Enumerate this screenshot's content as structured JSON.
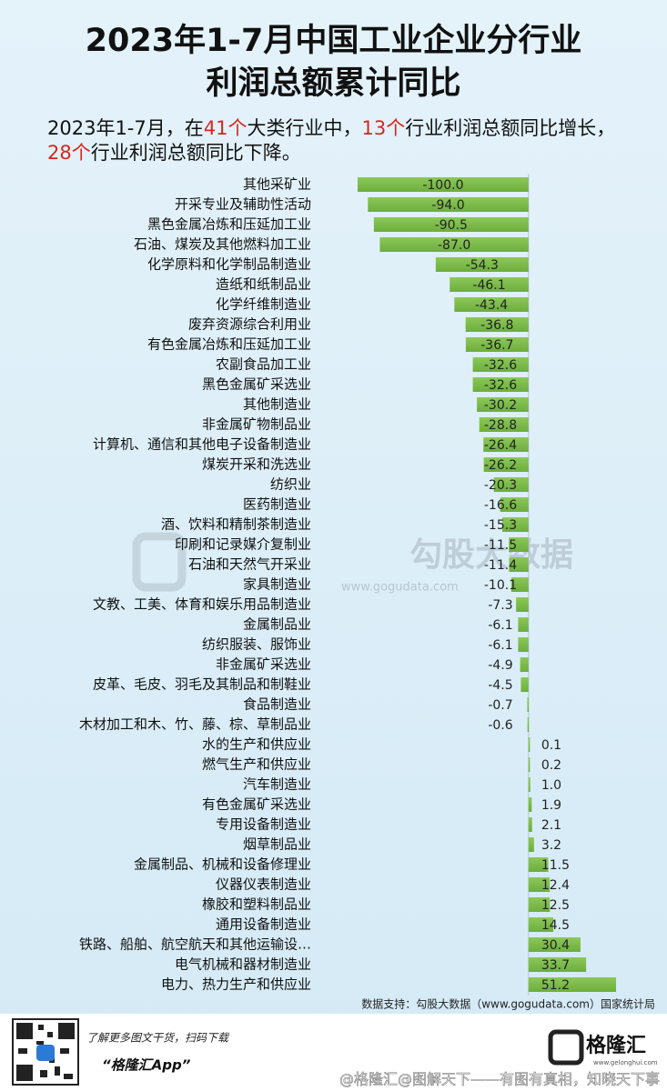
{
  "chart_data": {
    "type": "barh",
    "title": [
      "2023年1-7月中国工业企业分行业",
      "利润总额累计同比"
    ],
    "subtitle": [
      {
        "text": "2023年1-7月，在"
      },
      {
        "text": "41个",
        "highlight": true
      },
      {
        "text": "大类行业中，"
      },
      {
        "text": "13个",
        "highlight": true
      },
      {
        "text": "行业利润总额同比增长，"
      },
      {
        "text": "28个",
        "highlight": true
      },
      {
        "text": "行业利润总额同比下降。"
      }
    ],
    "highlight_color": "#d7261e",
    "categories": [
      "其他采矿业",
      "开采专业及辅助性活动",
      "黑色金属冶炼和压延加工业",
      "石油、煤炭及其他燃料加工业",
      "化学原料和化学制品制造业",
      "造纸和纸制品业",
      "化学纤维制造业",
      "废弃资源综合利用业",
      "有色金属冶炼和压延加工业",
      "农副食品加工业",
      "黑色金属矿采选业",
      "其他制造业",
      "非金属矿物制品业",
      "计算机、通信和其他电子设备制造业",
      "煤炭开采和洗选业",
      "纺织业",
      "医药制造业",
      "酒、饮料和精制茶制造业",
      "印刷和记录媒介复制业",
      "石油和天然气开采业",
      "家具制造业",
      "文教、工美、体育和娱乐用品制造业",
      "金属制品业",
      "纺织服装、服饰业",
      "非金属矿采选业",
      "皮革、毛皮、羽毛及其制品和制鞋业",
      "食品制造业",
      "木材加工和木、竹、藤、棕、草制品业",
      "水的生产和供应业",
      "燃气生产和供应业",
      "汽车制造业",
      "有色金属矿采选业",
      "专用设备制造业",
      "烟草制品业",
      "金属制品、机械和设备修理业",
      "仪器仪表制造业",
      "橡胶和塑料制品业",
      "通用设备制造业",
      "铁路、船舶、航空航天和其他运输设…",
      "电气机械和器材制造业",
      "电力、热力生产和供应业"
    ],
    "values": [
      -100,
      -94,
      -90.5,
      -87,
      -54.3,
      -46.1,
      -43.4,
      -36.8,
      -36.7,
      -32.6,
      -32.6,
      -30.2,
      -28.8,
      -26.4,
      -26.2,
      -20.3,
      -16.6,
      -15.3,
      -11.5,
      -11.4,
      -10.1,
      -7.3,
      -6.1,
      -6.1,
      -4.9,
      -4.5,
      -0.7,
      -0.6,
      0.1,
      0.2,
      1,
      1.9,
      2.1,
      3.2,
      11.5,
      12.4,
      12.5,
      14.5,
      30.4,
      33.7,
      51.2
    ],
    "value_labels": [
      "-100.0",
      "-94.0",
      "-90.5",
      "-87.0",
      "-54.3",
      "-46.1",
      "-43.4",
      "-36.8",
      "-36.7",
      "-32.6",
      "-32.6",
      "-30.2",
      "-28.8",
      "-26.4",
      "-26.2",
      "-20.3",
      "-16.6",
      "-15.3",
      "-11.5",
      "-11.4",
      "-10.1",
      "-7.3",
      "-6.1",
      "-6.1",
      "-4.9",
      "-4.5",
      "-0.7",
      "-0.6",
      "0.1",
      "0.2",
      "1.0",
      "1.9",
      "2.1",
      "3.2",
      "11.5",
      "12.4",
      "12.5",
      "14.5",
      "30.4",
      "33.7",
      "51.2"
    ],
    "color": "#6cae3c",
    "xlim": [
      -100,
      51.2
    ],
    "source": "数据支持：勾股大数据（www.gogudata.com）国家统计局"
  },
  "watermark": {
    "name": "勾股大数据",
    "url": "www.gogudata.com"
  },
  "footer": {
    "line1": "了解更多图文干货，扫码下载",
    "app": "“格隆汇App”",
    "brand": "格隆汇",
    "brand_url": "www.gelonghui.com",
    "credit": "@格隆汇@图解天下——有图有真相，知晓天下事"
  }
}
